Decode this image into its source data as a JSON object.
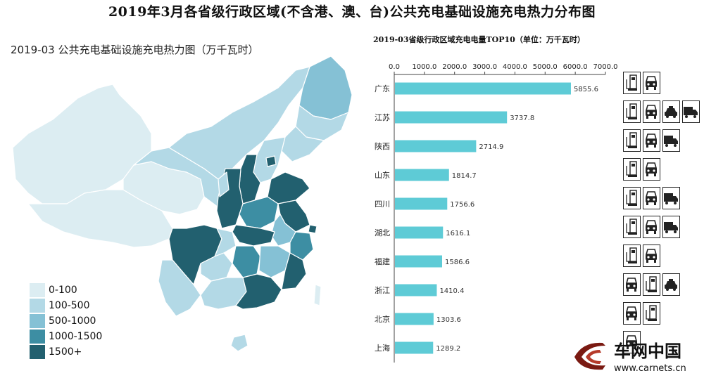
{
  "page": {
    "title": "2019年3月各省级行政区域(不含港、澳、台)公共充电基础设施充电热力分布图"
  },
  "map": {
    "title": "2019-03 公共充电基础设施充电热力图（万千瓦时）",
    "legend": [
      {
        "label": "0-100",
        "color": "#dcedf2"
      },
      {
        "label": "100-500",
        "color": "#b3d9e6"
      },
      {
        "label": "500-1000",
        "color": "#85c1d5"
      },
      {
        "label": "1000-1500",
        "color": "#3d8ea3"
      },
      {
        "label": "1500+",
        "color": "#22606f"
      }
    ]
  },
  "chart_data": {
    "type": "bar",
    "orientation": "horizontal",
    "title": "2019-03省级行政区域充电电量TOP10（单位：万千瓦时）",
    "categories": [
      "广东",
      "江苏",
      "陕西",
      "山东",
      "四川",
      "湖北",
      "福建",
      "浙江",
      "北京",
      "上海"
    ],
    "values": [
      5855.6,
      3737.8,
      2714.9,
      1814.7,
      1756.6,
      1616.1,
      1586.6,
      1410.4,
      1303.6,
      1289.2
    ],
    "value_labels": [
      "5855.6",
      "3737.8",
      "2714.9",
      "1814.7",
      "1756.6",
      "1616.1",
      "1586.6",
      "1410.4",
      "1303.6",
      "1289.2"
    ],
    "xlim": [
      0,
      7000
    ],
    "x_ticks": [
      "0.0",
      "1000.0",
      "2000.0",
      "3000.0",
      "4000.0",
      "5000.0",
      "6000.0",
      "7000.0"
    ],
    "x_tick_values": [
      0,
      1000,
      2000,
      3000,
      4000,
      5000,
      6000,
      7000
    ],
    "axis_position": "top",
    "bar_color": "#5ecbd6",
    "grid": false
  },
  "icons": {
    "rows": [
      [
        "charger-icon",
        "car-icon"
      ],
      [
        "charger-icon",
        "car-icon",
        "taxi-icon",
        "truck-icon"
      ],
      [
        "charger-icon",
        "car-icon",
        "truck-icon"
      ],
      [
        "charger-icon",
        "car-icon"
      ],
      [
        "charger-icon",
        "car-icon",
        "truck-icon"
      ],
      [
        "charger-icon",
        "car-icon",
        "truck-icon"
      ],
      [
        "charger-icon",
        "car-icon"
      ],
      [
        "car-icon",
        "charger-icon",
        "taxi-icon"
      ],
      [
        "car-icon",
        "charger-icon"
      ],
      [
        "car-icon"
      ]
    ]
  },
  "watermark": {
    "brand": "车网中国",
    "url": "www.carnets.cn"
  }
}
